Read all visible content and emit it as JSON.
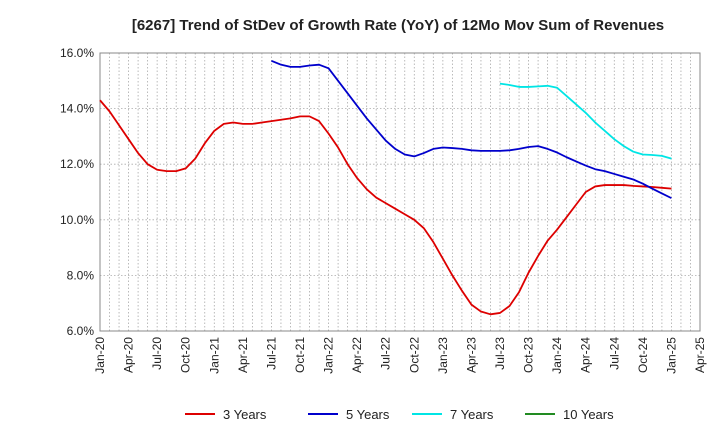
{
  "chart_data": {
    "type": "line",
    "title": "[6267]  Trend of StDev of Growth Rate (YoY) of 12Mo Mov Sum of Revenues",
    "xlabel": "",
    "ylabel": "",
    "ylim": [
      6.0,
      16.0
    ],
    "yticks": [
      6.0,
      8.0,
      10.0,
      12.0,
      14.0,
      16.0
    ],
    "ytick_labels": [
      "6.0%",
      "8.0%",
      "10.0%",
      "12.0%",
      "14.0%",
      "16.0%"
    ],
    "x_range_months": [
      0,
      63
    ],
    "x_ticks": [
      0,
      3,
      6,
      9,
      12,
      15,
      18,
      21,
      24,
      27,
      30,
      33,
      36,
      39,
      42,
      45,
      48,
      51,
      54,
      57,
      60,
      63
    ],
    "x_tick_labels": [
      "Jan-20",
      "Apr-20",
      "Jul-20",
      "Oct-20",
      "Jan-21",
      "Apr-21",
      "Jul-21",
      "Oct-21",
      "Jan-22",
      "Apr-22",
      "Jul-22",
      "Oct-22",
      "Jan-23",
      "Apr-23",
      "Jul-23",
      "Oct-23",
      "Jan-24",
      "Apr-24",
      "Jul-24",
      "Oct-24",
      "Jan-25",
      "Apr-25"
    ],
    "grid": "vertical dotted per month, horizontal dotted per tick",
    "legend_position": "bottom",
    "series": [
      {
        "name": "3 Years",
        "color": "#dd0000",
        "x": [
          0,
          1,
          2,
          3,
          4,
          5,
          6,
          7,
          8,
          9,
          10,
          11,
          12,
          13,
          14,
          15,
          16,
          17,
          18,
          19,
          20,
          21,
          22,
          23,
          24,
          25,
          26,
          27,
          28,
          29,
          30,
          31,
          32,
          33,
          34,
          35,
          36,
          37,
          38,
          39,
          40,
          41,
          42,
          43,
          44,
          45,
          46,
          47,
          48,
          49,
          50,
          51,
          52,
          53,
          54,
          55,
          56,
          57,
          58,
          59,
          60
        ],
        "values": [
          14.3,
          13.9,
          13.4,
          12.9,
          12.4,
          12.0,
          11.8,
          11.75,
          11.75,
          11.85,
          12.2,
          12.75,
          13.2,
          13.45,
          13.5,
          13.45,
          13.45,
          13.5,
          13.55,
          13.6,
          13.65,
          13.72,
          13.72,
          13.55,
          13.1,
          12.6,
          12.0,
          11.5,
          11.1,
          10.8,
          10.6,
          10.4,
          10.2,
          10.0,
          9.7,
          9.2,
          8.6,
          8.0,
          7.45,
          6.95,
          6.7,
          6.6,
          6.65,
          6.9,
          7.4,
          8.1,
          8.7,
          9.25,
          9.65,
          10.1,
          10.55,
          11.0,
          11.2,
          11.25,
          11.25,
          11.25,
          11.22,
          11.2,
          11.18,
          11.15,
          11.12
        ]
      },
      {
        "name": "5 Years",
        "color": "#0000cc",
        "x": [
          18,
          19,
          20,
          21,
          22,
          23,
          24,
          25,
          26,
          27,
          28,
          29,
          30,
          31,
          32,
          33,
          34,
          35,
          36,
          37,
          38,
          39,
          40,
          41,
          42,
          43,
          44,
          45,
          46,
          47,
          48,
          49,
          50,
          51,
          52,
          53,
          54,
          55,
          56,
          57,
          58,
          59,
          60
        ],
        "values": [
          15.72,
          15.58,
          15.5,
          15.5,
          15.55,
          15.58,
          15.45,
          15.0,
          14.55,
          14.1,
          13.65,
          13.25,
          12.85,
          12.55,
          12.35,
          12.28,
          12.4,
          12.55,
          12.6,
          12.58,
          12.55,
          12.5,
          12.48,
          12.48,
          12.48,
          12.5,
          12.55,
          12.62,
          12.65,
          12.55,
          12.42,
          12.25,
          12.1,
          11.95,
          11.82,
          11.75,
          11.65,
          11.55,
          11.45,
          11.3,
          11.12,
          10.95,
          10.78
        ]
      },
      {
        "name": "7 Years",
        "color": "#00e5e5",
        "x": [
          42,
          43,
          44,
          45,
          46,
          47,
          48,
          49,
          50,
          51,
          52,
          53,
          54,
          55,
          56,
          57,
          58,
          59,
          60
        ],
        "values": [
          14.9,
          14.85,
          14.78,
          14.78,
          14.8,
          14.82,
          14.75,
          14.45,
          14.15,
          13.85,
          13.5,
          13.2,
          12.9,
          12.65,
          12.45,
          12.35,
          12.33,
          12.3,
          12.2
        ]
      },
      {
        "name": "10 Years",
        "color": "#228b22",
        "x": [],
        "values": []
      }
    ]
  }
}
